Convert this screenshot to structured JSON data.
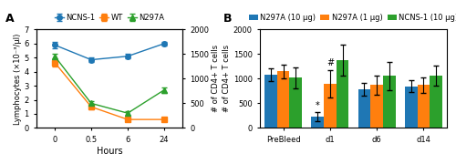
{
  "chart_data": [
    {
      "type": "line",
      "title": "A",
      "categories": [
        "0",
        "0.5",
        "6",
        "24"
      ],
      "xlabel": "Hours",
      "ylabel": "Lymphocytes (×10⁻³/μl)",
      "y2label": "# of CD4+ T cells",
      "ylim": [
        0,
        7
      ],
      "yticks": [
        0,
        1,
        2,
        3,
        4,
        5,
        6,
        7
      ],
      "y2lim": [
        0,
        2000
      ],
      "y2ticks": [
        0,
        500,
        1000,
        1500,
        2000
      ],
      "grid": false,
      "legend": "upper center",
      "series": [
        {
          "name": "NCNS-1",
          "marker": "circle",
          "values": [
            5.9,
            4.85,
            5.1,
            6.0
          ],
          "errors": [
            0.25,
            0.15,
            0.15,
            0.15
          ]
        },
        {
          "name": "WT",
          "marker": "square",
          "values": [
            4.65,
            1.5,
            0.6,
            0.6
          ],
          "errors": [
            0.25,
            0.15,
            0.1,
            0.1
          ]
        },
        {
          "name": "N297A",
          "marker": "triangle",
          "values": [
            5.1,
            1.75,
            1.05,
            2.7
          ],
          "errors": [
            0.2,
            0.15,
            0.15,
            0.2
          ]
        }
      ]
    },
    {
      "type": "bar",
      "title": "B",
      "categories": [
        "PreBleed",
        "d1",
        "d6",
        "d14"
      ],
      "ylabel": "# of CD4+ T cells",
      "ylim": [
        0,
        2000
      ],
      "yticks": [
        0,
        500,
        1000,
        1500,
        2000
      ],
      "grid": false,
      "legend": "upper center",
      "series": [
        {
          "name": "N297A (10 μg)",
          "values": [
            1080,
            230,
            780,
            850
          ],
          "errors": [
            130,
            85,
            130,
            120
          ]
        },
        {
          "name": "N297A (1 μg)",
          "values": [
            1150,
            900,
            870,
            870
          ],
          "errors": [
            140,
            280,
            200,
            150
          ]
        },
        {
          "name": "NCNS-1 (10 μg)",
          "values": [
            1020,
            1380,
            1060,
            1060
          ],
          "errors": [
            210,
            310,
            290,
            200
          ]
        }
      ],
      "annotations": [
        {
          "text": "*",
          "series": "N297A (10 μg)",
          "category": "d1"
        },
        {
          "text": "#",
          "series": "N297A (1 μg)",
          "category": "d1"
        }
      ]
    }
  ]
}
